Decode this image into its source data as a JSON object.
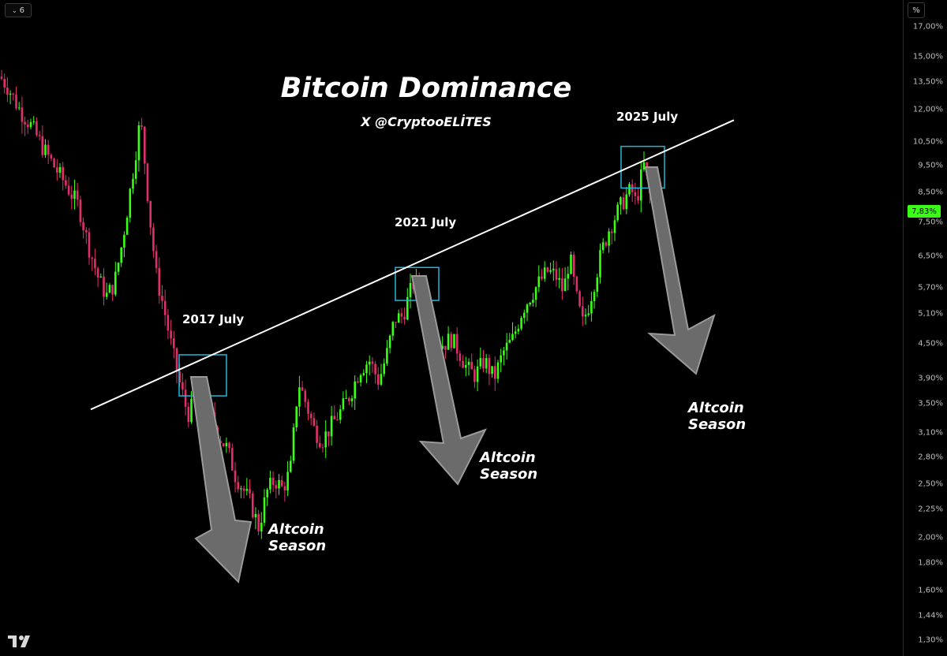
{
  "header": {
    "interval": "6",
    "scale_mode": "%"
  },
  "title": "Bitcoin Dominance",
  "subtitle": "X @CryptooELİTES",
  "current_price_label": "7,83%",
  "colors": {
    "up": "#39ff14",
    "down": "#e0306a",
    "trendline": "#ffffff",
    "box": "#22b7d9",
    "arrow": "#6b6b6b",
    "background": "#000000"
  },
  "annotations": {
    "cycles": [
      {
        "label": "2017 July",
        "alt_line1": "Altcoin",
        "alt_line2": "Season"
      },
      {
        "label": "2021 July",
        "alt_line1": "Altcoin",
        "alt_line2": "Season"
      },
      {
        "label": "2025 July",
        "alt_line1": "Altcoin",
        "alt_line2": "Season"
      }
    ]
  },
  "chart_data": {
    "type": "candlestick",
    "scale": "log",
    "y_unit": "%",
    "y_ticks": [
      "17,00%",
      "15,00%",
      "13,50%",
      "12,00%",
      "10,50%",
      "9,50%",
      "8,50%",
      "7,50%",
      "6,50%",
      "5,70%",
      "5,10%",
      "4,50%",
      "3,90%",
      "3,50%",
      "3,10%",
      "2,80%",
      "2,50%",
      "2,25%",
      "2,00%",
      "1,80%",
      "1,60%",
      "1,44%",
      "1,30%"
    ],
    "y_tick_values": [
      17.0,
      15.0,
      13.5,
      12.0,
      10.5,
      9.5,
      8.5,
      7.5,
      6.5,
      5.7,
      5.1,
      4.5,
      3.9,
      3.5,
      3.1,
      2.8,
      2.5,
      2.25,
      2.0,
      1.8,
      1.6,
      1.44,
      1.3
    ],
    "ylim": [
      1.27,
      17.5
    ],
    "close_trajectory": [
      [
        0,
        13.8
      ],
      [
        10,
        13.2
      ],
      [
        25,
        12.0
      ],
      [
        40,
        11.2
      ],
      [
        55,
        10.2
      ],
      [
        70,
        9.4
      ],
      [
        85,
        8.7
      ],
      [
        100,
        8.0
      ],
      [
        112,
        6.8
      ],
      [
        125,
        5.9
      ],
      [
        135,
        5.5
      ],
      [
        145,
        5.8
      ],
      [
        155,
        6.9
      ],
      [
        163,
        8.2
      ],
      [
        170,
        9.6
      ],
      [
        178,
        11.6
      ],
      [
        183,
        9.8
      ],
      [
        190,
        7.6
      ],
      [
        198,
        6.0
      ],
      [
        208,
        5.2
      ],
      [
        218,
        4.4
      ],
      [
        228,
        3.8
      ],
      [
        238,
        3.35
      ],
      [
        248,
        3.55
      ],
      [
        258,
        3.65
      ],
      [
        268,
        3.3
      ],
      [
        278,
        3.05
      ],
      [
        288,
        2.9
      ],
      [
        298,
        2.6
      ],
      [
        308,
        2.45
      ],
      [
        318,
        2.3
      ],
      [
        328,
        2.08
      ],
      [
        338,
        2.42
      ],
      [
        348,
        2.55
      ],
      [
        358,
        2.45
      ],
      [
        368,
        2.65
      ],
      [
        378,
        3.85
      ],
      [
        388,
        3.5
      ],
      [
        398,
        3.15
      ],
      [
        408,
        3.0
      ],
      [
        420,
        3.2
      ],
      [
        432,
        3.4
      ],
      [
        444,
        3.65
      ],
      [
        456,
        4.05
      ],
      [
        468,
        4.2
      ],
      [
        480,
        3.85
      ],
      [
        490,
        4.3
      ],
      [
        500,
        5.0
      ],
      [
        510,
        5.05
      ],
      [
        520,
        5.6
      ],
      [
        526,
        5.9
      ],
      [
        534,
        5.2
      ],
      [
        542,
        4.85
      ],
      [
        552,
        4.5
      ],
      [
        562,
        4.5
      ],
      [
        572,
        4.6
      ],
      [
        582,
        4.35
      ],
      [
        592,
        4.05
      ],
      [
        602,
        3.95
      ],
      [
        614,
        4.2
      ],
      [
        626,
        3.9
      ],
      [
        638,
        4.35
      ],
      [
        650,
        4.6
      ],
      [
        662,
        5.2
      ],
      [
        672,
        5.5
      ],
      [
        684,
        5.85
      ],
      [
        694,
        6.1
      ],
      [
        704,
        6.0
      ],
      [
        714,
        5.6
      ],
      [
        722,
        6.5
      ],
      [
        730,
        5.5
      ],
      [
        738,
        4.9
      ],
      [
        746,
        5.3
      ],
      [
        754,
        5.9
      ],
      [
        762,
        6.6
      ],
      [
        772,
        7.3
      ],
      [
        782,
        7.8
      ],
      [
        792,
        8.3
      ],
      [
        800,
        8.6
      ],
      [
        806,
        8.1
      ],
      [
        812,
        9.0
      ],
      [
        816,
        9.5
      ],
      [
        822,
        8.6
      ],
      [
        828,
        7.83
      ]
    ],
    "trendline": [
      [
        115,
        3.42
      ],
      [
        930,
        11.5
      ]
    ],
    "highlight_boxes": [
      {
        "label": "2017 July",
        "x0": 227,
        "x1": 287,
        "y_top": 4.3,
        "y_bottom": 3.62
      },
      {
        "label": "2021 July",
        "x0": 501,
        "x1": 556,
        "y_top": 6.2,
        "y_bottom": 5.4
      },
      {
        "label": "2025 July",
        "x0": 787,
        "x1": 842,
        "y_top": 10.3,
        "y_bottom": 8.65
      }
    ],
    "last_value": 7.83
  }
}
